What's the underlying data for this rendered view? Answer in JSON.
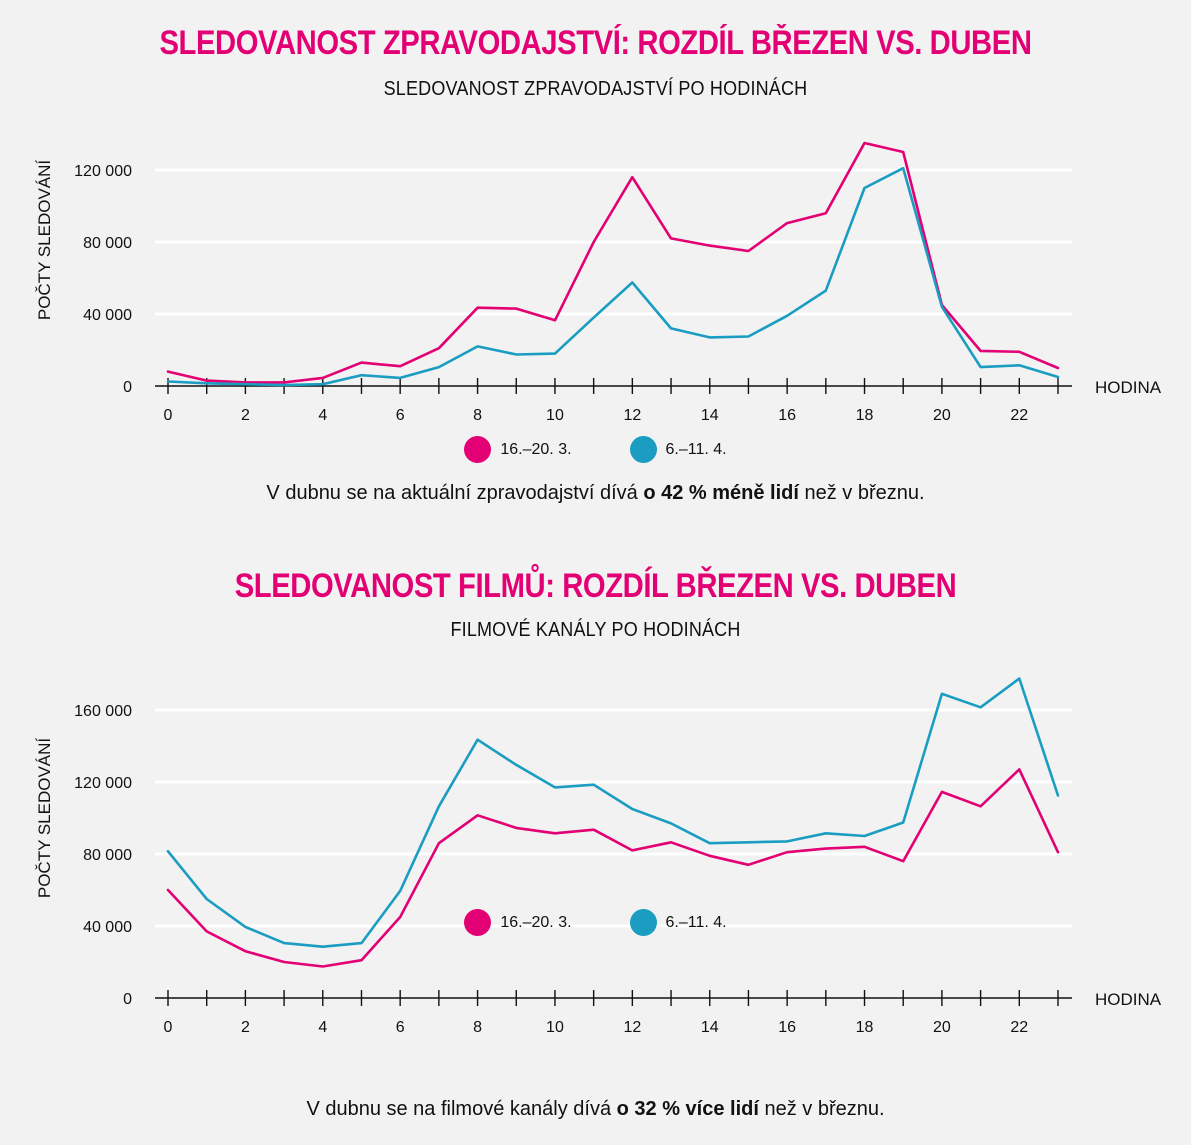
{
  "chart_data": [
    {
      "type": "line",
      "title": "SLEDOVANOST ZPRAVODAJSTVÍ: ROZDÍL BŘEZEN VS. DUBEN",
      "subtitle": "SLEDOVANOST ZPRAVODAJSTVÍ PO HODINÁCH",
      "xlabel": "HODINA",
      "ylabel": "POČTY SLEDOVÁNÍ",
      "xlim": [
        0,
        23
      ],
      "ylim": [
        0,
        120000
      ],
      "x": [
        0,
        1,
        2,
        3,
        4,
        5,
        6,
        7,
        8,
        9,
        10,
        11,
        12,
        13,
        14,
        15,
        16,
        17,
        18,
        19,
        20,
        21,
        22,
        23
      ],
      "x_ticks": [
        "0",
        "2",
        "4",
        "6",
        "8",
        "10",
        "12",
        "14",
        "16",
        "18",
        "20",
        "22"
      ],
      "y_ticks": [
        {
          "value": 0,
          "label": "0"
        },
        {
          "value": 40000,
          "label": "40 000"
        },
        {
          "value": 80000,
          "label": "80 000"
        },
        {
          "value": 120000,
          "label": "120 000"
        }
      ],
      "grid": true,
      "legend_placement": "bottom-center",
      "series": [
        {
          "name": "16.–20. 3.",
          "color": "#e20074",
          "values": [
            8000,
            3000,
            2000,
            2000,
            4500,
            13000,
            11000,
            21000,
            43500,
            43000,
            36500,
            80000,
            116000,
            82000,
            78000,
            75000,
            90500,
            96000,
            135000,
            130000,
            45000,
            19500,
            19000,
            10000
          ]
        },
        {
          "name": "6.–11. 4.",
          "color": "#1a9dc1",
          "values": [
            2500,
            1500,
            1000,
            500,
            1000,
            6000,
            4500,
            10500,
            22000,
            17500,
            18000,
            38000,
            57500,
            32000,
            27000,
            27500,
            39000,
            53000,
            110000,
            121000,
            44000,
            10500,
            11500,
            5000
          ]
        }
      ],
      "note": {
        "pre": "V dubnu se na aktuální zpravodajství dívá ",
        "bold": "o 42 % méně lidí",
        "post": " než v březnu."
      }
    },
    {
      "type": "line",
      "title": "SLEDOVANOST FILMŮ: ROZDÍL BŘEZEN VS. DUBEN",
      "subtitle": "FILMOVÉ KANÁLY PO HODINÁCH",
      "xlabel": "HODINA",
      "ylabel": "POČTY SLEDOVÁNÍ",
      "xlim": [
        0,
        23
      ],
      "ylim": [
        0,
        160000
      ],
      "x": [
        0,
        1,
        2,
        3,
        4,
        5,
        6,
        7,
        8,
        9,
        10,
        11,
        12,
        13,
        14,
        15,
        16,
        17,
        18,
        19,
        20,
        21,
        22,
        23
      ],
      "x_ticks": [
        "0",
        "2",
        "4",
        "6",
        "8",
        "10",
        "12",
        "14",
        "16",
        "18",
        "20",
        "22"
      ],
      "y_ticks": [
        {
          "value": 0,
          "label": "0"
        },
        {
          "value": 40000,
          "label": "40 000"
        },
        {
          "value": 80000,
          "label": "80 000"
        },
        {
          "value": 120000,
          "label": "120 000"
        },
        {
          "value": 160000,
          "label": "160 000"
        }
      ],
      "grid": true,
      "legend_placement": "bottom-center",
      "series": [
        {
          "name": "16.–20. 3.",
          "color": "#e20074",
          "values": [
            60000,
            37000,
            26000,
            20000,
            17500,
            21000,
            45000,
            86000,
            101500,
            94500,
            91500,
            93500,
            82000,
            86500,
            79000,
            74000,
            81000,
            83000,
            84000,
            76000,
            114500,
            106500,
            127000,
            81000
          ]
        },
        {
          "name": "6.–11. 4.",
          "color": "#1a9dc1",
          "values": [
            81500,
            55000,
            39500,
            30500,
            28500,
            30500,
            59500,
            106500,
            143500,
            129500,
            117000,
            118500,
            105000,
            97000,
            86000,
            86500,
            87000,
            91500,
            90000,
            97500,
            169000,
            161500,
            177500,
            112500
          ]
        }
      ],
      "note": {
        "pre": "V dubnu se na filmové kanály dívá ",
        "bold": "o 32 % více lidí",
        "post": " než v březnu."
      }
    }
  ]
}
